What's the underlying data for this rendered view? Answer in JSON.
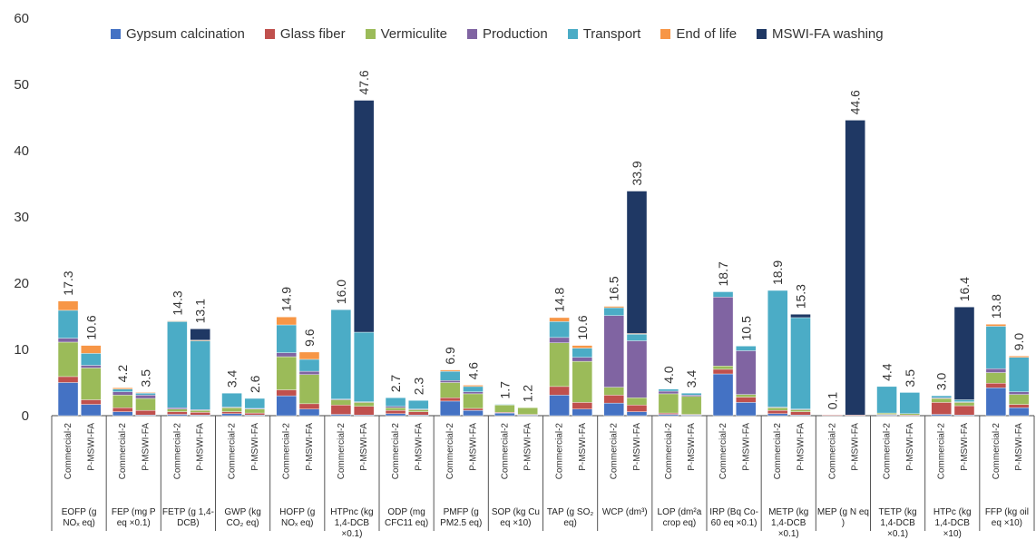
{
  "chart_data": {
    "type": "stacked_bar",
    "groups": [
      "EOFP (g NOₓ eq)",
      "FEP (mg P eq ×0.1)",
      "FETP (g 1,4-DCB)",
      "GWP (kg CO₂ eq)",
      "HOFP (g NOₓ eq)",
      "HTPnc (kg 1,4-DCB ×0.1)",
      "ODP (mg CFC11 eq)",
      "PMFP (g PM2.5 eq)",
      "SOP (kg Cu eq ×10)",
      "TAP (g SO₂ eq)",
      "WCP (dm³)",
      "LOP (dm²a crop eq)",
      "IRP (Bq Co-60 eq ×0.1)",
      "METP (kg 1,4-DCB ×0.1)",
      "MEP (g N eq )",
      "TETP (kg 1,4-DCB ×0.1)",
      "HTPc (kg 1,4-DCB ×10)",
      "FFP (kg oil eq ×10)"
    ],
    "categories": [
      "Commercial-2",
      "P-MSWI-FA",
      "Commercial-2",
      "P-MSWI-FA",
      "Commercial-2",
      "P-MSWI-FA",
      "Commercial-2",
      "P-MSWI-FA",
      "Commercial-2",
      "P-MSWI-FA",
      "Commercial-2",
      "P-MSWI-FA",
      "Commercial-2",
      "P-MSWI-FA",
      "Commercial-2",
      "P-MSWI-FA",
      "Commercial-2",
      "P-MSWI-FA",
      "Commercial-2",
      "P-MSWI-FA",
      "Commercial-2",
      "P-MSWI-FA",
      "Commercial-2",
      "P-MSWI-FA",
      "Commercial-2",
      "P-MSWI-FA",
      "Commercial-2",
      "P-MSWI-FA",
      "Commercial-2",
      "P-MSWI-FA",
      "Commercial-2",
      "P-MSWI-FA",
      "Commercial-2",
      "P-MSWI-FA",
      "Commercial-2",
      "P-MSWI-FA"
    ],
    "series": [
      {
        "name": "Gypsum calcination",
        "color": "#4472c4",
        "values": [
          5.0,
          1.7,
          0.6,
          0.1,
          0.2,
          0.1,
          0.3,
          0.1,
          3.0,
          1.0,
          0.2,
          0.1,
          0.3,
          0.1,
          2.2,
          0.8,
          0.4,
          0.1,
          3.1,
          1.0,
          1.9,
          0.6,
          0.2,
          0.1,
          6.3,
          2.0,
          0.3,
          0.1,
          0,
          0,
          0.1,
          0,
          0.2,
          0.1,
          4.2,
          1.2
        ]
      },
      {
        "name": "Glass fiber",
        "color": "#c0504d",
        "values": [
          0.9,
          0.7,
          0.6,
          0.7,
          0.4,
          0.4,
          0.3,
          0.3,
          0.9,
          0.8,
          1.4,
          1.3,
          0.5,
          0.5,
          0.5,
          0.3,
          0.1,
          0.1,
          1.3,
          1.0,
          1.2,
          1.0,
          0.2,
          0.1,
          0.7,
          0.8,
          0.5,
          0.5,
          0.1,
          0.1,
          0.1,
          0.1,
          1.8,
          1.4,
          0.7,
          0.5
        ]
      },
      {
        "name": "Vermiculite",
        "color": "#9bbb59",
        "values": [
          5.2,
          4.8,
          1.9,
          1.8,
          0.4,
          0.3,
          0.6,
          0.6,
          5.0,
          4.4,
          0.8,
          0.6,
          0.4,
          0.3,
          2.3,
          2.2,
          1.1,
          1.0,
          6.6,
          6.2,
          1.2,
          1.1,
          2.9,
          2.7,
          0.5,
          0.4,
          0.4,
          0.3,
          0,
          0,
          0.2,
          0.2,
          0.6,
          0.5,
          1.6,
          1.5
        ]
      },
      {
        "name": "Production",
        "color": "#8064a2",
        "values": [
          0.6,
          0.4,
          0.5,
          0.5,
          0.2,
          0.1,
          0.1,
          0.1,
          0.6,
          0.5,
          0.1,
          0.1,
          0.2,
          0.1,
          0.3,
          0.3,
          0,
          0,
          0.8,
          0.6,
          10.8,
          8.6,
          0.4,
          0.2,
          10.4,
          6.6,
          0.1,
          0.1,
          0,
          0,
          0,
          0,
          0.1,
          0.1,
          0.6,
          0.4
        ]
      },
      {
        "name": "Transport",
        "color": "#4bacc6",
        "values": [
          4.2,
          1.8,
          0.4,
          0.3,
          13.0,
          10.4,
          2.1,
          1.5,
          4.2,
          1.8,
          13.5,
          10.5,
          1.3,
          1.3,
          1.4,
          0.8,
          0.1,
          0,
          2.4,
          1.4,
          1.2,
          1.0,
          0.3,
          0.3,
          0.8,
          0.7,
          17.6,
          13.8,
          0,
          0,
          4.0,
          3.2,
          0.3,
          0.3,
          6.4,
          5.2
        ]
      },
      {
        "name": "End of life",
        "color": "#f79646",
        "values": [
          1.4,
          1.2,
          0.2,
          0.1,
          0.1,
          0.1,
          0,
          0,
          1.2,
          1.1,
          0,
          0,
          0,
          0,
          0.2,
          0.2,
          0,
          0,
          0.6,
          0.4,
          0.2,
          0.1,
          0,
          0,
          0,
          0,
          0,
          0,
          0,
          0,
          0,
          0,
          0,
          0,
          0.3,
          0.2
        ]
      },
      {
        "name": "MSWI-FA washing",
        "color": "#1f3864",
        "values": [
          0,
          0,
          0,
          0,
          0,
          1.7,
          0,
          0,
          0,
          0,
          0,
          35.0,
          0,
          0,
          0,
          0,
          0,
          0,
          0,
          0,
          0,
          21.5,
          0,
          0,
          0,
          0,
          0,
          0.5,
          0,
          44.5,
          0,
          0,
          0,
          14.0,
          0,
          0
        ]
      }
    ],
    "totals": [
      17.3,
      10.6,
      4.2,
      3.5,
      14.3,
      13.1,
      3.4,
      2.6,
      14.9,
      9.6,
      16.0,
      47.6,
      2.7,
      2.3,
      6.9,
      4.6,
      1.7,
      1.2,
      14.8,
      10.6,
      16.5,
      33.9,
      4.0,
      3.4,
      18.7,
      10.5,
      18.9,
      15.3,
      0.1,
      44.6,
      4.4,
      3.5,
      3.0,
      16.4,
      13.8,
      9.0
    ],
    "total_labels": [
      "17.3",
      "10.6",
      "4.2",
      "3.5",
      "14.3",
      "13.1",
      "3.4",
      "2.6",
      "14.9",
      "9.6",
      "16.0",
      "47.6",
      "2.7",
      "2.3",
      "6.9",
      "4.6",
      "1.7",
      "1.2",
      "14.8",
      "10.6",
      "16.5",
      "33.9",
      "4.0",
      "3.4",
      "18.7",
      "10.5",
      "18.9",
      "15.3",
      "0.1",
      "44.6",
      "4.4",
      "3.5",
      "3.0",
      "16.4",
      "13.8",
      "9.0"
    ],
    "ylim": [
      0,
      60
    ],
    "yticks": [
      0,
      10,
      20,
      30,
      40,
      50,
      60
    ],
    "grid": false,
    "legend_position": "top"
  }
}
